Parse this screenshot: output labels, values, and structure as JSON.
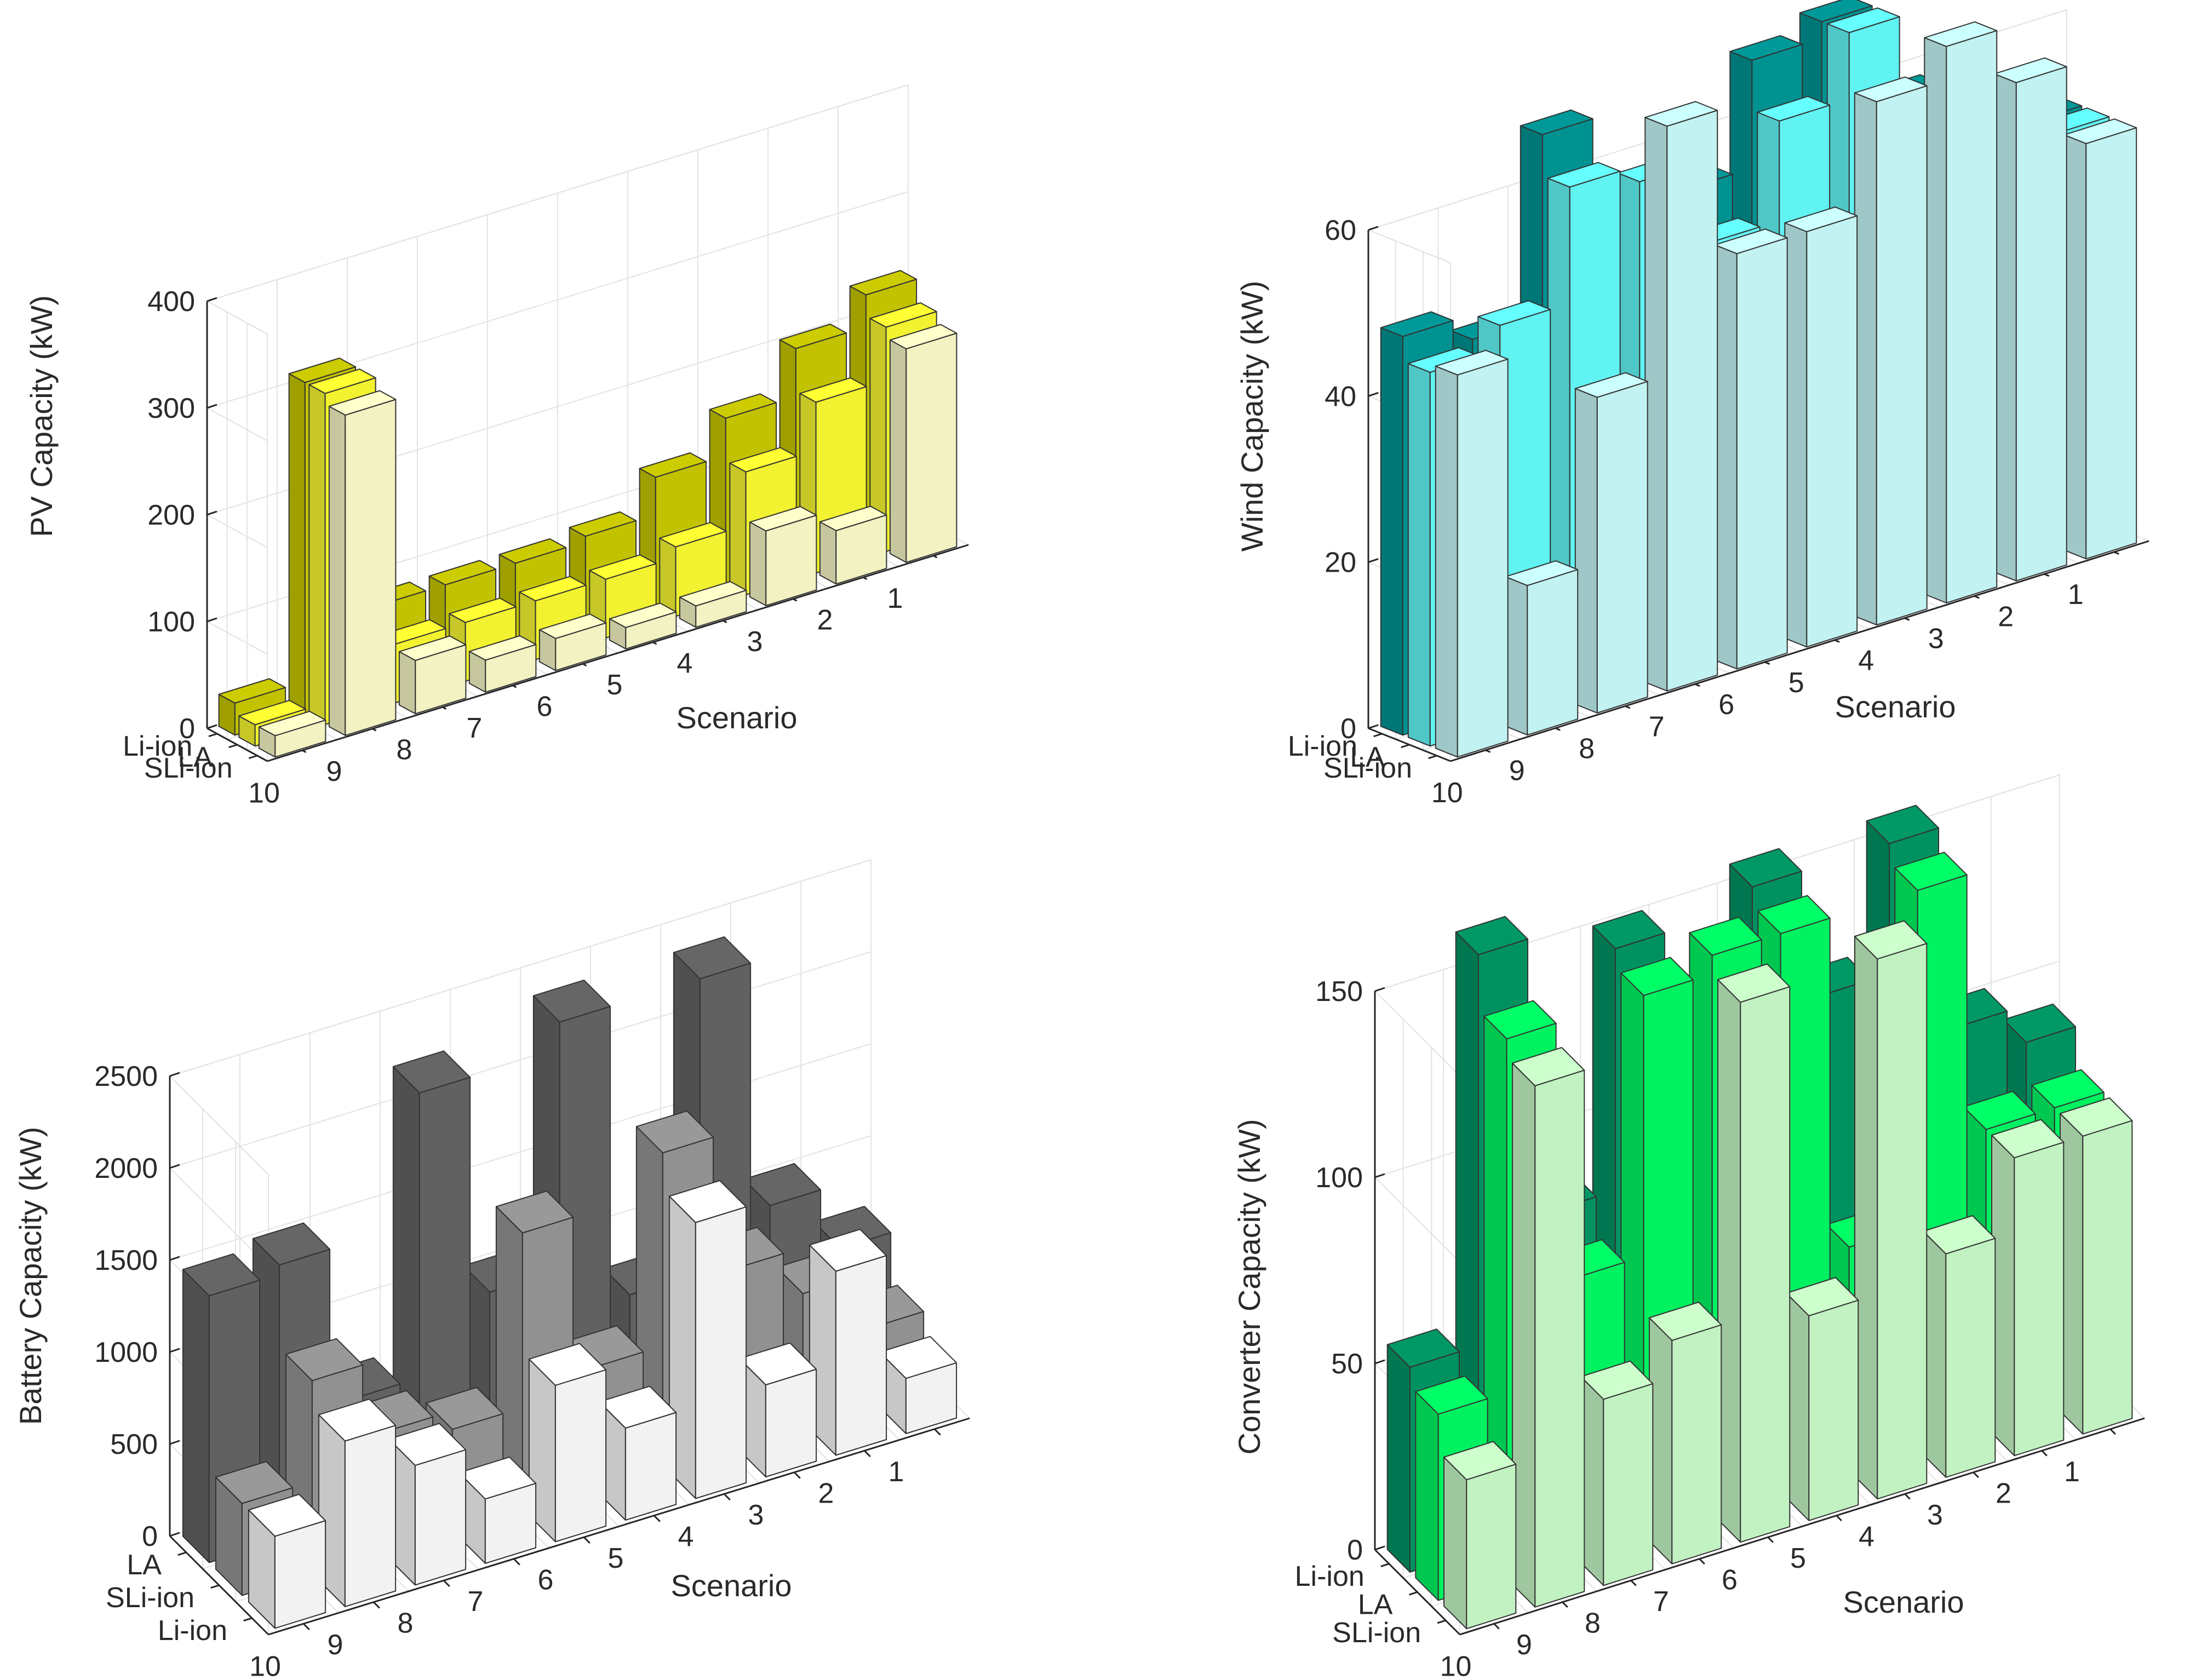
{
  "chart_data": [
    {
      "type": "bar3d",
      "title": "",
      "zlabel": "PV Capacity (kW)",
      "xlabel": "Scenario",
      "zlim": [
        0,
        400
      ],
      "zticks": [
        0,
        100,
        200,
        300,
        400
      ],
      "scenarios": [
        "1",
        "2",
        "3",
        "4",
        "5",
        "6",
        "7",
        "8",
        "9",
        "10"
      ],
      "series": [
        {
          "name": "Li-ion",
          "color": "#cccc00",
          "values": [
            230,
            200,
            155,
            120,
            85,
            80,
            80,
            80,
            310,
            30
          ]
        },
        {
          "name": "LA",
          "color": "#ffff33",
          "values": [
            210,
            160,
            115,
            65,
            55,
            55,
            55,
            55,
            310,
            20
          ]
        },
        {
          "name": "SLi-ion",
          "color": "#ffffcc",
          "values": [
            200,
            50,
            70,
            20,
            20,
            30,
            30,
            50,
            300,
            20
          ]
        }
      ]
    },
    {
      "type": "bar3d",
      "title": "",
      "zlabel": "Wind Capacity (kW)",
      "xlabel": "Scenario",
      "zlim": [
        0,
        60
      ],
      "zticks": [
        0,
        20,
        40,
        60
      ],
      "scenarios": [
        "1",
        "2",
        "3",
        "4",
        "5",
        "6",
        "7",
        "8",
        "9",
        "10"
      ],
      "series": [
        {
          "name": "Li-ion",
          "color": "#009999",
          "values": [
            50,
            50,
            58,
            70,
            68,
            55,
            45,
            67,
            45,
            48
          ]
        },
        {
          "name": "LA",
          "color": "#66ffff",
          "values": [
            50,
            50,
            55,
            70,
            62,
            50,
            60,
            62,
            48,
            45
          ]
        },
        {
          "name": "SLi-ion",
          "color": "#ccffff",
          "values": [
            50,
            60,
            67,
            63,
            50,
            50,
            68,
            38,
            18,
            46
          ]
        }
      ]
    },
    {
      "type": "bar3d",
      "title": "",
      "zlabel": "Battery Capacity (kW)",
      "xlabel": "Scenario",
      "zlim": [
        0,
        2500
      ],
      "zticks": [
        0,
        500,
        1000,
        1500,
        2000,
        2500
      ],
      "scenarios": [
        "1",
        "2",
        "3",
        "4",
        "5",
        "6",
        "7",
        "8",
        "9",
        "10"
      ],
      "series": [
        {
          "name": "LA",
          "color": "#666666",
          "values": [
            650,
            1000,
            2350,
            750,
            2350,
            1000,
            2200,
            650,
            1500,
            1450
          ]
        },
        {
          "name": "SLi-ion",
          "color": "#999999",
          "values": [
            400,
            700,
            950,
            1700,
            650,
            1500,
            550,
            650,
            1050,
            500
          ]
        },
        {
          "name": "Li-ion",
          "color": "#ffffff",
          "values": [
            300,
            1000,
            500,
            1500,
            500,
            850,
            350,
            650,
            900,
            500
          ]
        }
      ]
    },
    {
      "type": "bar3d",
      "title": "",
      "zlabel": "Converter Capacity (kW)",
      "xlabel": "Scenario",
      "zlim": [
        0,
        150
      ],
      "zticks": [
        0,
        50,
        100,
        150
      ],
      "scenarios": [
        "1",
        "2",
        "3",
        "4",
        "5",
        "6",
        "7",
        "8",
        "9",
        "10"
      ],
      "series": [
        {
          "name": "Li-ion",
          "color": "#009966",
          "values": [
            90,
            100,
            155,
            120,
            155,
            110,
            150,
            85,
            160,
            55
          ]
        },
        {
          "name": "LA",
          "color": "#00ff66",
          "values": [
            80,
            80,
            150,
            60,
            150,
            150,
            145,
            75,
            145,
            50
          ]
        },
        {
          "name": "SLi-ion",
          "color": "#ccffcc",
          "values": [
            80,
            80,
            60,
            145,
            55,
            145,
            60,
            50,
            140,
            40
          ]
        }
      ]
    }
  ]
}
